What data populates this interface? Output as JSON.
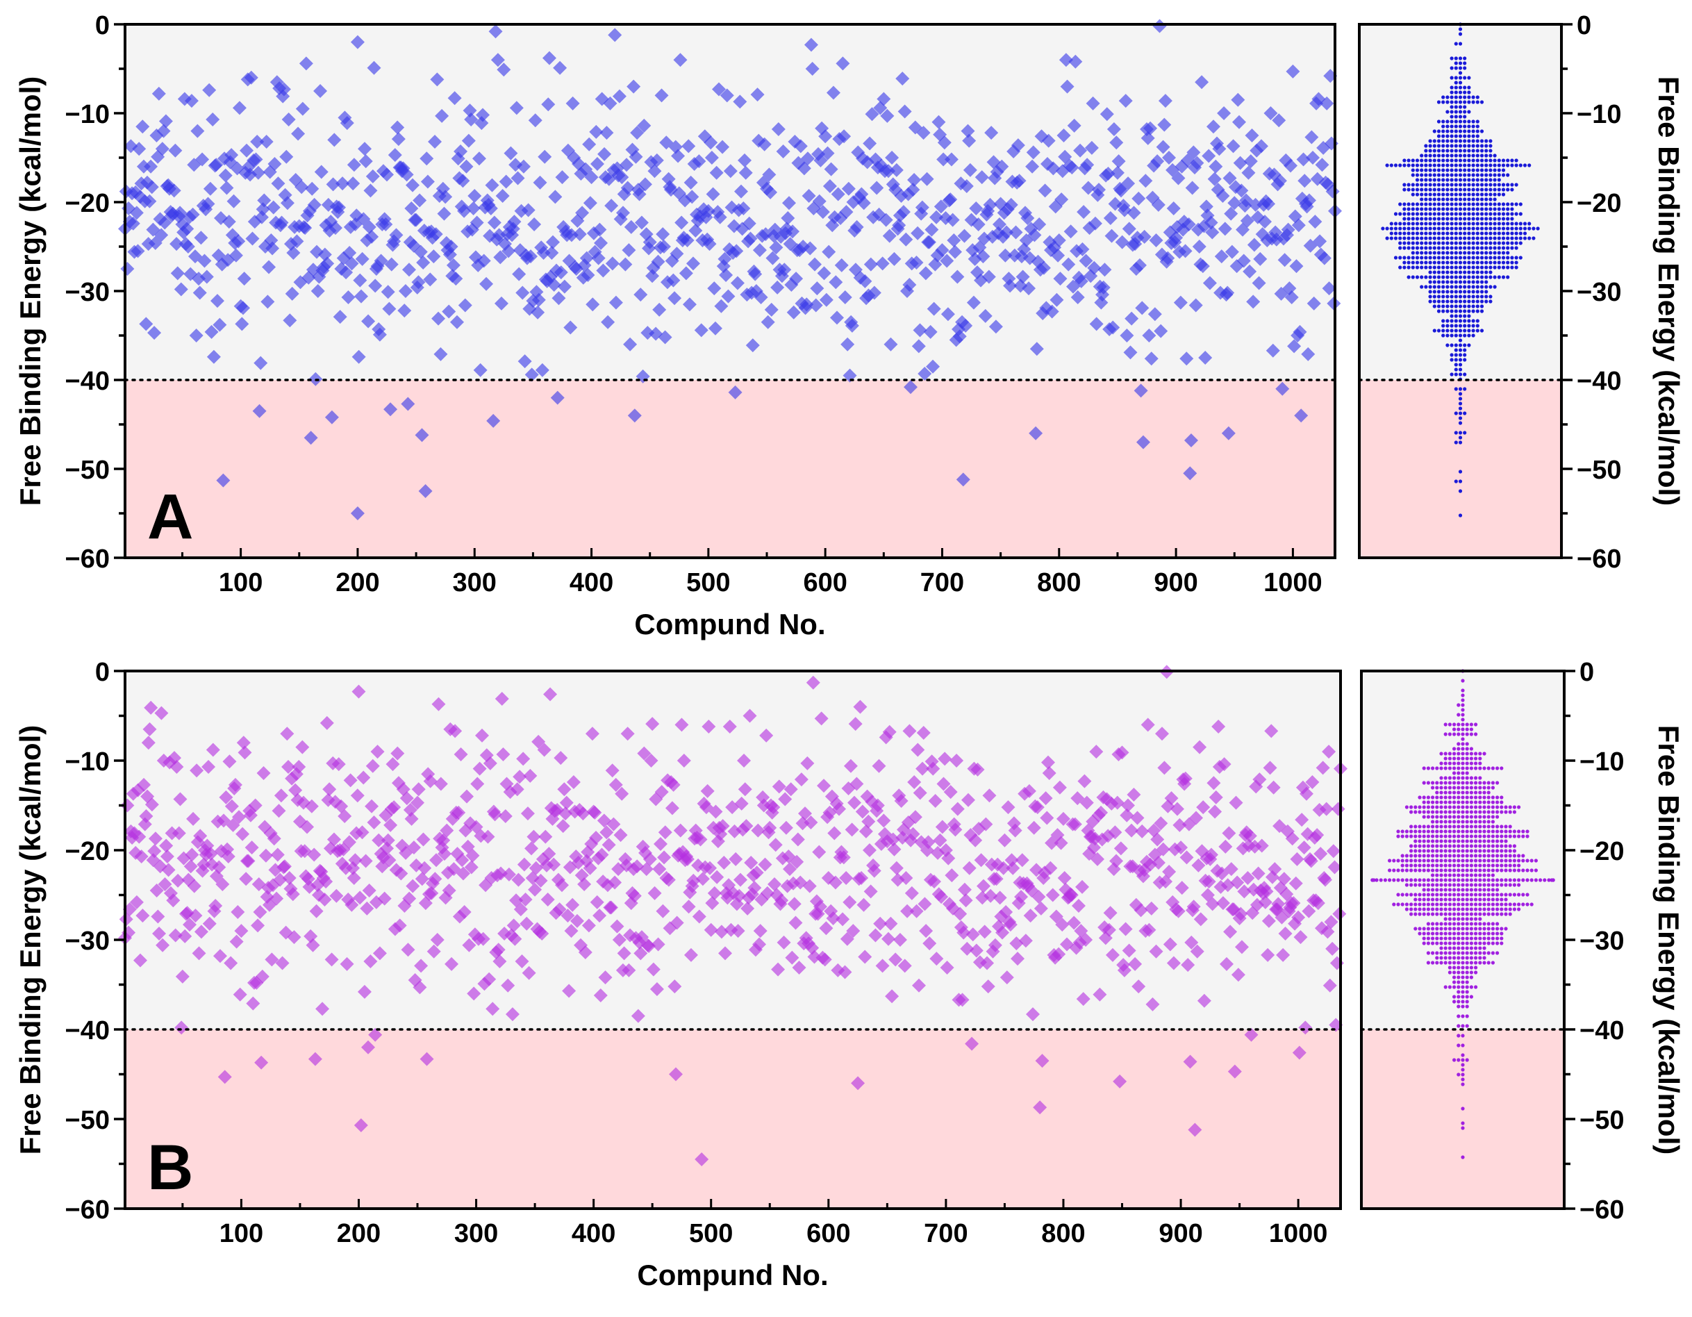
{
  "figure": {
    "threshold": -40,
    "colors": {
      "normal_region": "#f4f4f4",
      "highlight_region": "#ffd9dc",
      "threshold_line": "#000000",
      "axes": "#000000"
    }
  },
  "chart_data": [
    {
      "id": "A",
      "type": "scatter",
      "panel_label": "A",
      "xlabel": "Compund No.",
      "ylabel": "Free Binding Energy (kcal/mol)",
      "ylabel_right": "Free Binding Energy (kcal/mol)",
      "xlim": [
        1,
        1036
      ],
      "ylim": [
        -60,
        0
      ],
      "xticks": [
        100,
        200,
        300,
        400,
        500,
        600,
        700,
        800,
        900,
        1000
      ],
      "xtick_labels": [
        "100",
        "200",
        "300",
        "400",
        "500",
        "600",
        "700",
        "800",
        "900",
        "1000"
      ],
      "yticks": [
        0,
        -10,
        -20,
        -30,
        -40,
        -50,
        -60
      ],
      "ytick_labels": [
        "0",
        "−10",
        "−20",
        "−30",
        "−40",
        "−50",
        "−60"
      ],
      "marker": "diamond",
      "marker_color": "#3a3ae8",
      "dot_color": "#1a1ad8",
      "n_points": 1036,
      "distribution": {
        "mean": -22.5,
        "sd": 7.5,
        "min": -55,
        "max": -0.2
      },
      "marked_points": [
        {
          "x": 886,
          "y": -0.2
        },
        {
          "x": 318,
          "y": -0.8
        },
        {
          "x": 420,
          "y": -1.2
        },
        {
          "x": 200,
          "y": -2
        },
        {
          "x": 588,
          "y": -2.3
        },
        {
          "x": 364,
          "y": -3.8
        },
        {
          "x": 476,
          "y": -4
        },
        {
          "x": 814,
          "y": -4.2
        },
        {
          "x": 1000,
          "y": -5.3
        },
        {
          "x": 85,
          "y": -51.3
        },
        {
          "x": 200,
          "y": -55
        },
        {
          "x": 258,
          "y": -52.5
        },
        {
          "x": 718,
          "y": -51.2
        },
        {
          "x": 912,
          "y": -50.5
        },
        {
          "x": 160,
          "y": -46.5
        },
        {
          "x": 255,
          "y": -46.2
        },
        {
          "x": 872,
          "y": -47
        },
        {
          "x": 913,
          "y": -46.8
        },
        {
          "x": 945,
          "y": -46
        },
        {
          "x": 780,
          "y": -46
        },
        {
          "x": 1007,
          "y": -44
        },
        {
          "x": 116,
          "y": -43.5
        },
        {
          "x": 178,
          "y": -44.2
        },
        {
          "x": 228,
          "y": -43.3
        },
        {
          "x": 437,
          "y": -44
        },
        {
          "x": 316,
          "y": -44.6
        }
      ]
    },
    {
      "id": "B",
      "type": "scatter",
      "panel_label": "B",
      "xlabel": "Compund No.",
      "ylabel": "Free Binding Energy (kcal/mol)",
      "ylabel_right": "Free Binding Energy (kcal/mol)",
      "xlim": [
        1,
        1036
      ],
      "ylim": [
        -60,
        0
      ],
      "xticks": [
        100,
        200,
        300,
        400,
        500,
        600,
        700,
        800,
        900,
        1000
      ],
      "xtick_labels": [
        "100",
        "200",
        "300",
        "400",
        "500",
        "600",
        "700",
        "800",
        "900",
        "1000"
      ],
      "yticks": [
        0,
        -10,
        -20,
        -30,
        -40,
        -50,
        -60
      ],
      "ytick_labels": [
        "0",
        "−10",
        "−20",
        "−30",
        "−40",
        "−50",
        "−60"
      ],
      "marker": "diamond",
      "marker_color": "#b431e0",
      "dot_color": "#a020e0",
      "n_points": 1036,
      "distribution": {
        "mean": -21.5,
        "sd": 7.2,
        "min": -54.5,
        "max": -0.1
      },
      "marked_points": [
        {
          "x": 888,
          "y": -0.1
        },
        {
          "x": 587,
          "y": -1.3
        },
        {
          "x": 200,
          "y": -2.3
        },
        {
          "x": 363,
          "y": -2.6
        },
        {
          "x": 322,
          "y": -3.1
        },
        {
          "x": 268,
          "y": -3.7
        },
        {
          "x": 475,
          "y": -6
        },
        {
          "x": 492,
          "y": -54.5
        },
        {
          "x": 912,
          "y": -51.2
        },
        {
          "x": 202,
          "y": -50.7
        },
        {
          "x": 780,
          "y": -48.7
        },
        {
          "x": 625,
          "y": -46
        },
        {
          "x": 848,
          "y": -45.8
        },
        {
          "x": 86,
          "y": -45.3
        },
        {
          "x": 470,
          "y": -45
        },
        {
          "x": 946,
          "y": -44.7
        },
        {
          "x": 117,
          "y": -43.7
        },
        {
          "x": 163,
          "y": -43.3
        },
        {
          "x": 258,
          "y": -43.3
        },
        {
          "x": 782,
          "y": -43.5
        },
        {
          "x": 908,
          "y": -43.6
        },
        {
          "x": 208,
          "y": -42
        },
        {
          "x": 722,
          "y": -41.6
        },
        {
          "x": 1001,
          "y": -42.6
        },
        {
          "x": 960,
          "y": -40.6
        }
      ]
    }
  ]
}
